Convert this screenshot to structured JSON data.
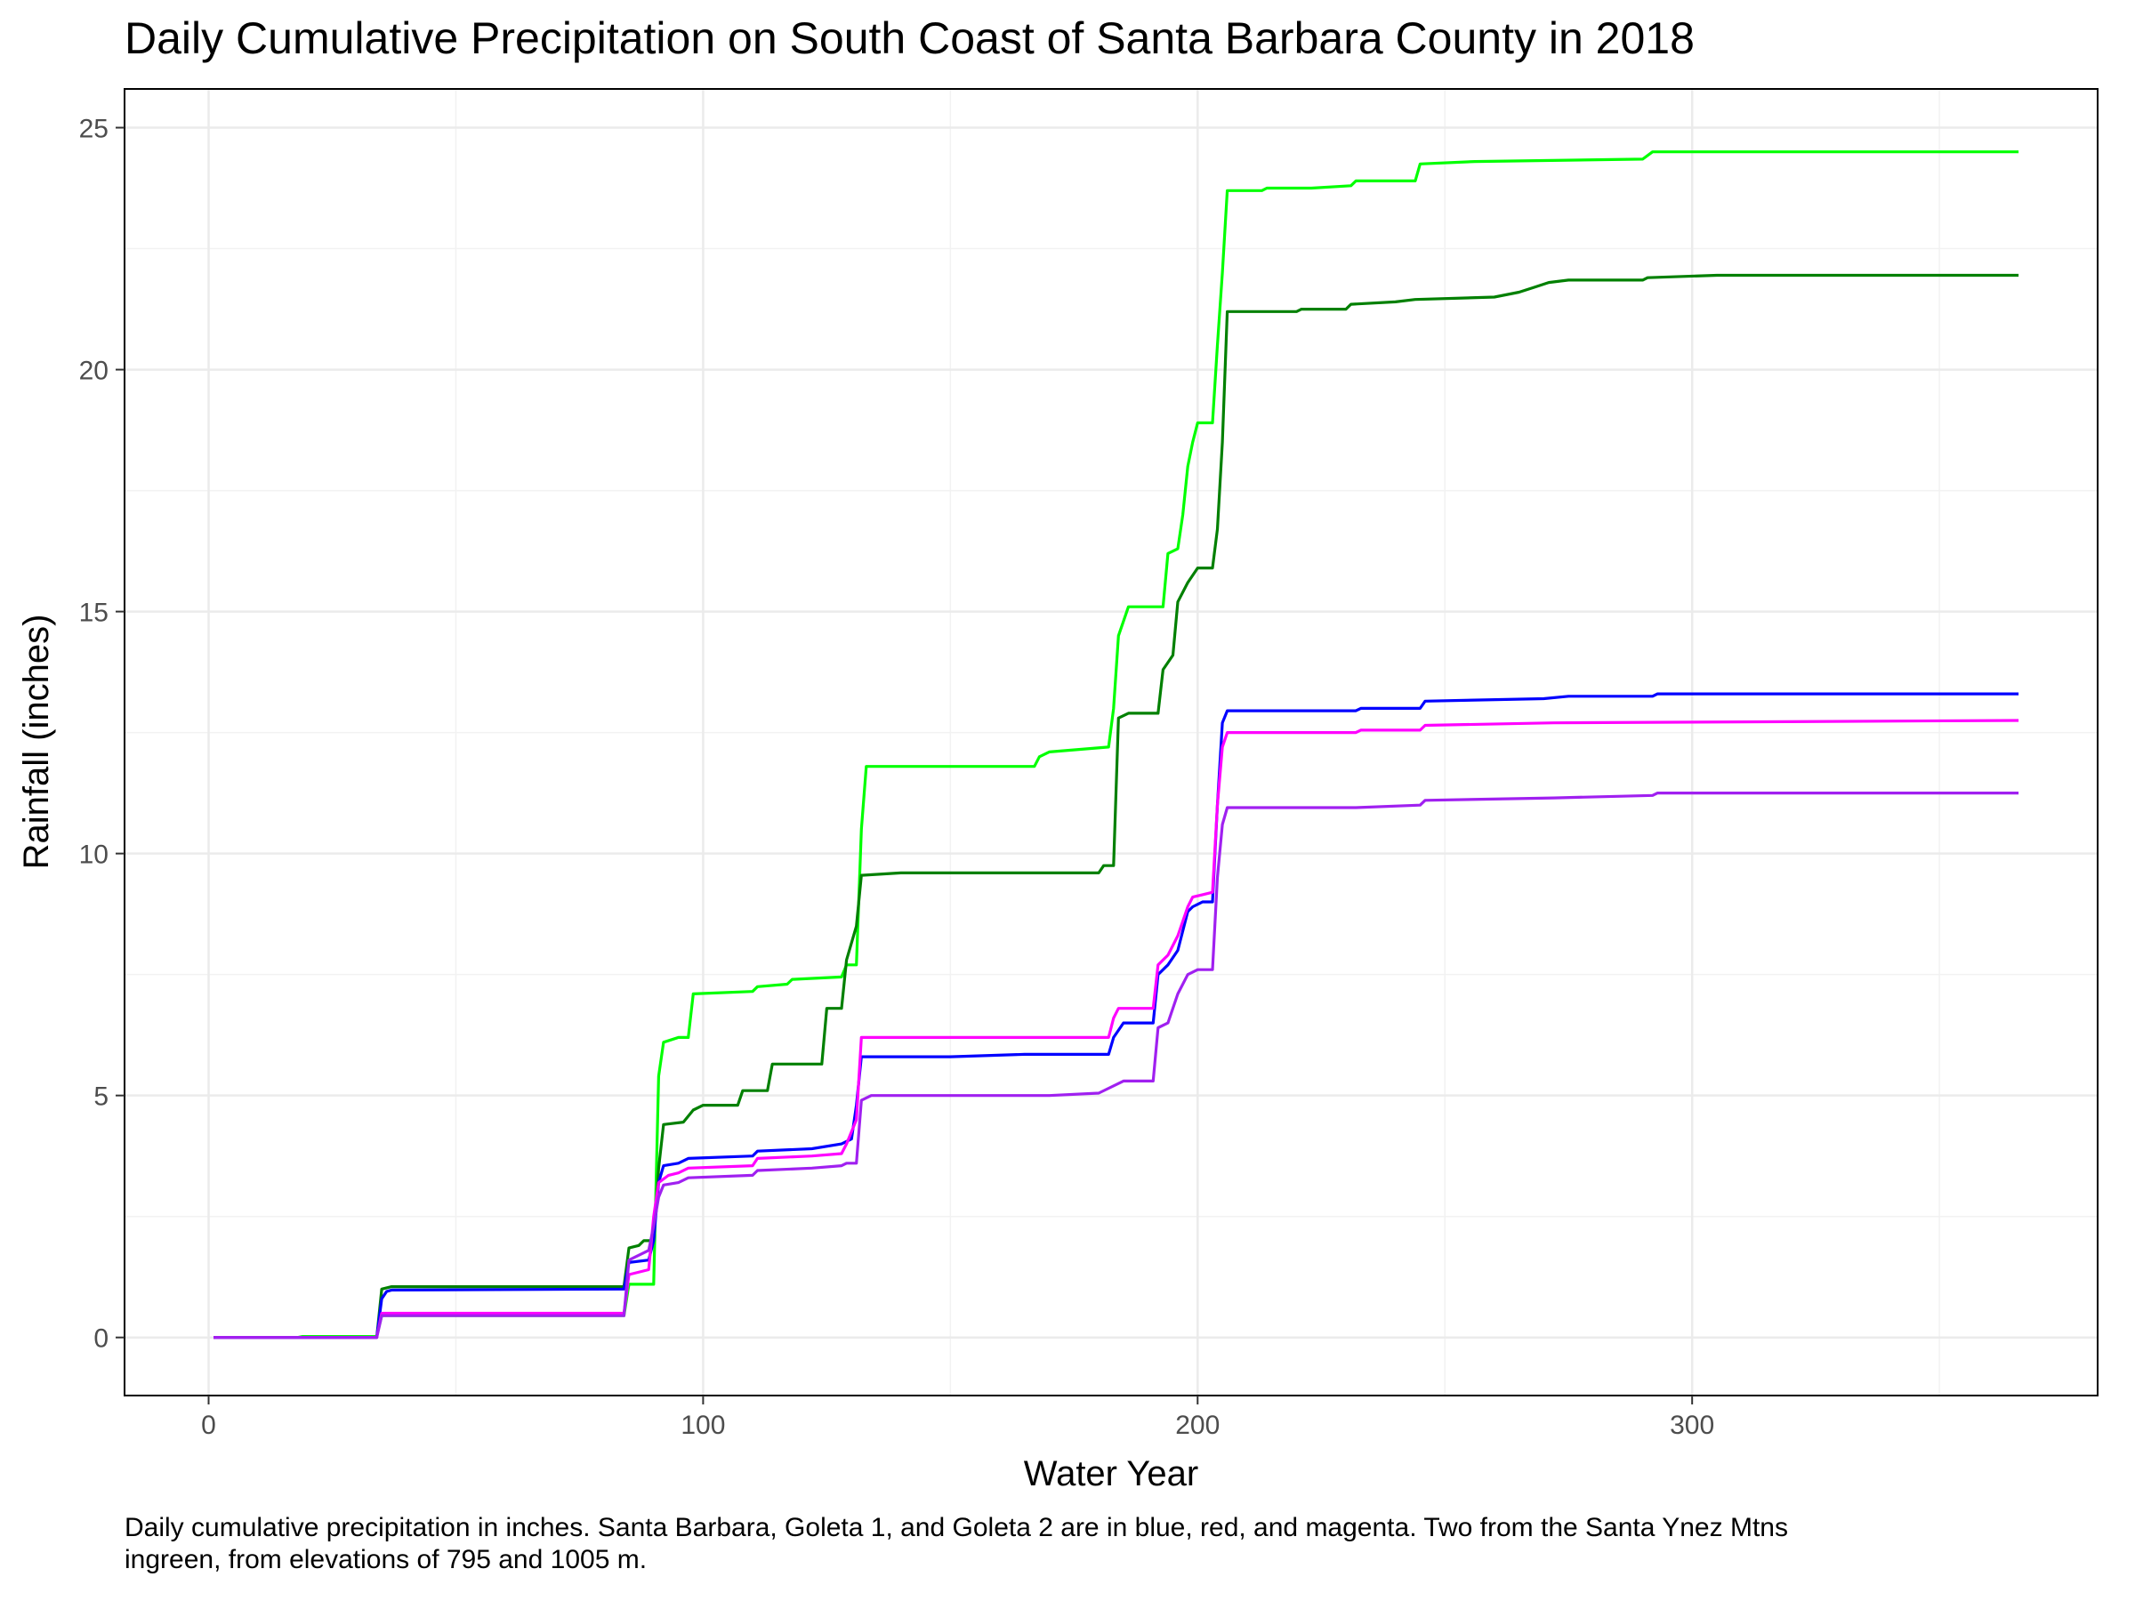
{
  "chart_data": {
    "type": "line",
    "title": "Daily Cumulative Precipitation on South Coast of Santa Barbara County in 2018",
    "xlabel": "Water Year",
    "ylabel": "Rainfall (inches)",
    "xlim": [
      -17,
      382
    ],
    "ylim": [
      -1.2,
      25.8
    ],
    "x_ticks": [
      0,
      100,
      200,
      300
    ],
    "y_ticks": [
      0,
      5,
      10,
      15,
      20,
      25
    ],
    "grid": true,
    "caption": "Daily cumulative precipitation in inches. Santa Barbara, Goleta 1, and Goleta 2 are in blue, red, and magenta. Two from the Santa Ynez Mtns\ningreen, from elevations of 795 and 1005 m.",
    "series": [
      {
        "color": "#00ff00",
        "points": [
          [
            1,
            0
          ],
          [
            18,
            0
          ],
          [
            19,
            0.02
          ],
          [
            34,
            0.02
          ],
          [
            35,
            0.45
          ],
          [
            84,
            0.45
          ],
          [
            85,
            1.1
          ],
          [
            90,
            1.1
          ],
          [
            91,
            5.4
          ],
          [
            92,
            6.1
          ],
          [
            95,
            6.2
          ],
          [
            97,
            6.2
          ],
          [
            98,
            7.1
          ],
          [
            110,
            7.15
          ],
          [
            111,
            7.25
          ],
          [
            117,
            7.3
          ],
          [
            118,
            7.4
          ],
          [
            128,
            7.45
          ],
          [
            129,
            7.7
          ],
          [
            131,
            7.7
          ],
          [
            132,
            10.5
          ],
          [
            133,
            11.8
          ],
          [
            167,
            11.8
          ],
          [
            168,
            12.0
          ],
          [
            170,
            12.1
          ],
          [
            182,
            12.2
          ],
          [
            183,
            13.0
          ],
          [
            184,
            14.5
          ],
          [
            186,
            15.1
          ],
          [
            193,
            15.1
          ],
          [
            194,
            16.2
          ],
          [
            196,
            16.3
          ],
          [
            197,
            17.0
          ],
          [
            198,
            18.0
          ],
          [
            199,
            18.5
          ],
          [
            200,
            18.9
          ],
          [
            203,
            18.9
          ],
          [
            204,
            20.5
          ],
          [
            205,
            22.0
          ],
          [
            206,
            23.7
          ],
          [
            213,
            23.7
          ],
          [
            214,
            23.75
          ],
          [
            223,
            23.75
          ],
          [
            231,
            23.8
          ],
          [
            232,
            23.9
          ],
          [
            244,
            23.9
          ],
          [
            245,
            24.25
          ],
          [
            256,
            24.3
          ],
          [
            290,
            24.35
          ],
          [
            292,
            24.5
          ],
          [
            366,
            24.5
          ]
        ]
      },
      {
        "color": "#008000",
        "points": [
          [
            1,
            0
          ],
          [
            34,
            0
          ],
          [
            35,
            1.0
          ],
          [
            37,
            1.05
          ],
          [
            84,
            1.05
          ],
          [
            85,
            1.85
          ],
          [
            87,
            1.9
          ],
          [
            88,
            2.0
          ],
          [
            90,
            2.0
          ],
          [
            91,
            3.5
          ],
          [
            92,
            4.4
          ],
          [
            96,
            4.45
          ],
          [
            98,
            4.7
          ],
          [
            100,
            4.8
          ],
          [
            107,
            4.8
          ],
          [
            108,
            5.1
          ],
          [
            113,
            5.1
          ],
          [
            114,
            5.65
          ],
          [
            124,
            5.65
          ],
          [
            125,
            6.8
          ],
          [
            128,
            6.8
          ],
          [
            129,
            7.8
          ],
          [
            131,
            8.5
          ],
          [
            132,
            9.55
          ],
          [
            140,
            9.6
          ],
          [
            180,
            9.6
          ],
          [
            181,
            9.75
          ],
          [
            183,
            9.75
          ],
          [
            184,
            12.8
          ],
          [
            186,
            12.9
          ],
          [
            192,
            12.9
          ],
          [
            193,
            13.8
          ],
          [
            195,
            14.1
          ],
          [
            196,
            15.2
          ],
          [
            198,
            15.6
          ],
          [
            200,
            15.9
          ],
          [
            203,
            15.9
          ],
          [
            204,
            16.7
          ],
          [
            205,
            18.5
          ],
          [
            206,
            21.2
          ],
          [
            220,
            21.2
          ],
          [
            221,
            21.25
          ],
          [
            230,
            21.25
          ],
          [
            231,
            21.35
          ],
          [
            240,
            21.4
          ],
          [
            244,
            21.45
          ],
          [
            260,
            21.5
          ],
          [
            265,
            21.6
          ],
          [
            268,
            21.7
          ],
          [
            271,
            21.8
          ],
          [
            275,
            21.85
          ],
          [
            290,
            21.85
          ],
          [
            291,
            21.9
          ],
          [
            305,
            21.95
          ],
          [
            366,
            21.95
          ]
        ]
      },
      {
        "color": "#0000ff",
        "points": [
          [
            1,
            0
          ],
          [
            34,
            0
          ],
          [
            35,
            0.8
          ],
          [
            36,
            0.95
          ],
          [
            37,
            0.98
          ],
          [
            84,
            1.0
          ],
          [
            85,
            1.55
          ],
          [
            89,
            1.6
          ],
          [
            90,
            2.0
          ],
          [
            91,
            3.2
          ],
          [
            92,
            3.55
          ],
          [
            95,
            3.6
          ],
          [
            97,
            3.7
          ],
          [
            110,
            3.75
          ],
          [
            111,
            3.85
          ],
          [
            122,
            3.9
          ],
          [
            128,
            4.0
          ],
          [
            130,
            4.1
          ],
          [
            131,
            4.8
          ],
          [
            132,
            5.8
          ],
          [
            150,
            5.8
          ],
          [
            165,
            5.85
          ],
          [
            182,
            5.85
          ],
          [
            183,
            6.2
          ],
          [
            185,
            6.5
          ],
          [
            191,
            6.5
          ],
          [
            192,
            7.5
          ],
          [
            194,
            7.7
          ],
          [
            196,
            8.0
          ],
          [
            198,
            8.8
          ],
          [
            199,
            8.9
          ],
          [
            201,
            9.0
          ],
          [
            203,
            9.0
          ],
          [
            204,
            11.0
          ],
          [
            205,
            12.7
          ],
          [
            206,
            12.95
          ],
          [
            232,
            12.95
          ],
          [
            233,
            13.0
          ],
          [
            245,
            13.0
          ],
          [
            246,
            13.15
          ],
          [
            270,
            13.2
          ],
          [
            275,
            13.25
          ],
          [
            292,
            13.25
          ],
          [
            293,
            13.3
          ],
          [
            366,
            13.3
          ]
        ]
      },
      {
        "color": "#ff00ff",
        "points": [
          [
            1,
            0
          ],
          [
            34,
            0
          ],
          [
            35,
            0.5
          ],
          [
            84,
            0.5
          ],
          [
            85,
            1.3
          ],
          [
            89,
            1.4
          ],
          [
            90,
            2.5
          ],
          [
            91,
            3.2
          ],
          [
            93,
            3.35
          ],
          [
            95,
            3.4
          ],
          [
            97,
            3.5
          ],
          [
            110,
            3.55
          ],
          [
            111,
            3.7
          ],
          [
            122,
            3.75
          ],
          [
            128,
            3.8
          ],
          [
            129,
            4.0
          ],
          [
            131,
            4.5
          ],
          [
            132,
            6.2
          ],
          [
            182,
            6.2
          ],
          [
            183,
            6.6
          ],
          [
            184,
            6.8
          ],
          [
            191,
            6.8
          ],
          [
            192,
            7.7
          ],
          [
            194,
            7.9
          ],
          [
            196,
            8.3
          ],
          [
            198,
            8.9
          ],
          [
            199,
            9.1
          ],
          [
            201,
            9.15
          ],
          [
            203,
            9.2
          ],
          [
            204,
            11.0
          ],
          [
            205,
            12.2
          ],
          [
            206,
            12.5
          ],
          [
            232,
            12.5
          ],
          [
            233,
            12.55
          ],
          [
            245,
            12.55
          ],
          [
            246,
            12.65
          ],
          [
            272,
            12.7
          ],
          [
            366,
            12.75
          ]
        ]
      },
      {
        "color": "#a020f0",
        "points": [
          [
            1,
            0
          ],
          [
            34,
            0
          ],
          [
            35,
            0.45
          ],
          [
            84,
            0.45
          ],
          [
            85,
            1.6
          ],
          [
            89,
            1.8
          ],
          [
            90,
            2.3
          ],
          [
            91,
            2.9
          ],
          [
            92,
            3.15
          ],
          [
            95,
            3.2
          ],
          [
            97,
            3.3
          ],
          [
            110,
            3.35
          ],
          [
            111,
            3.45
          ],
          [
            122,
            3.5
          ],
          [
            128,
            3.55
          ],
          [
            129,
            3.6
          ],
          [
            131,
            3.6
          ],
          [
            132,
            4.9
          ],
          [
            134,
            5.0
          ],
          [
            170,
            5.0
          ],
          [
            180,
            5.05
          ],
          [
            185,
            5.3
          ],
          [
            191,
            5.3
          ],
          [
            192,
            6.4
          ],
          [
            194,
            6.5
          ],
          [
            196,
            7.1
          ],
          [
            198,
            7.5
          ],
          [
            200,
            7.6
          ],
          [
            203,
            7.6
          ],
          [
            204,
            9.5
          ],
          [
            205,
            10.6
          ],
          [
            206,
            10.95
          ],
          [
            232,
            10.95
          ],
          [
            245,
            11.0
          ],
          [
            246,
            11.1
          ],
          [
            272,
            11.15
          ],
          [
            292,
            11.2
          ],
          [
            293,
            11.25
          ],
          [
            366,
            11.25
          ]
        ]
      }
    ]
  }
}
